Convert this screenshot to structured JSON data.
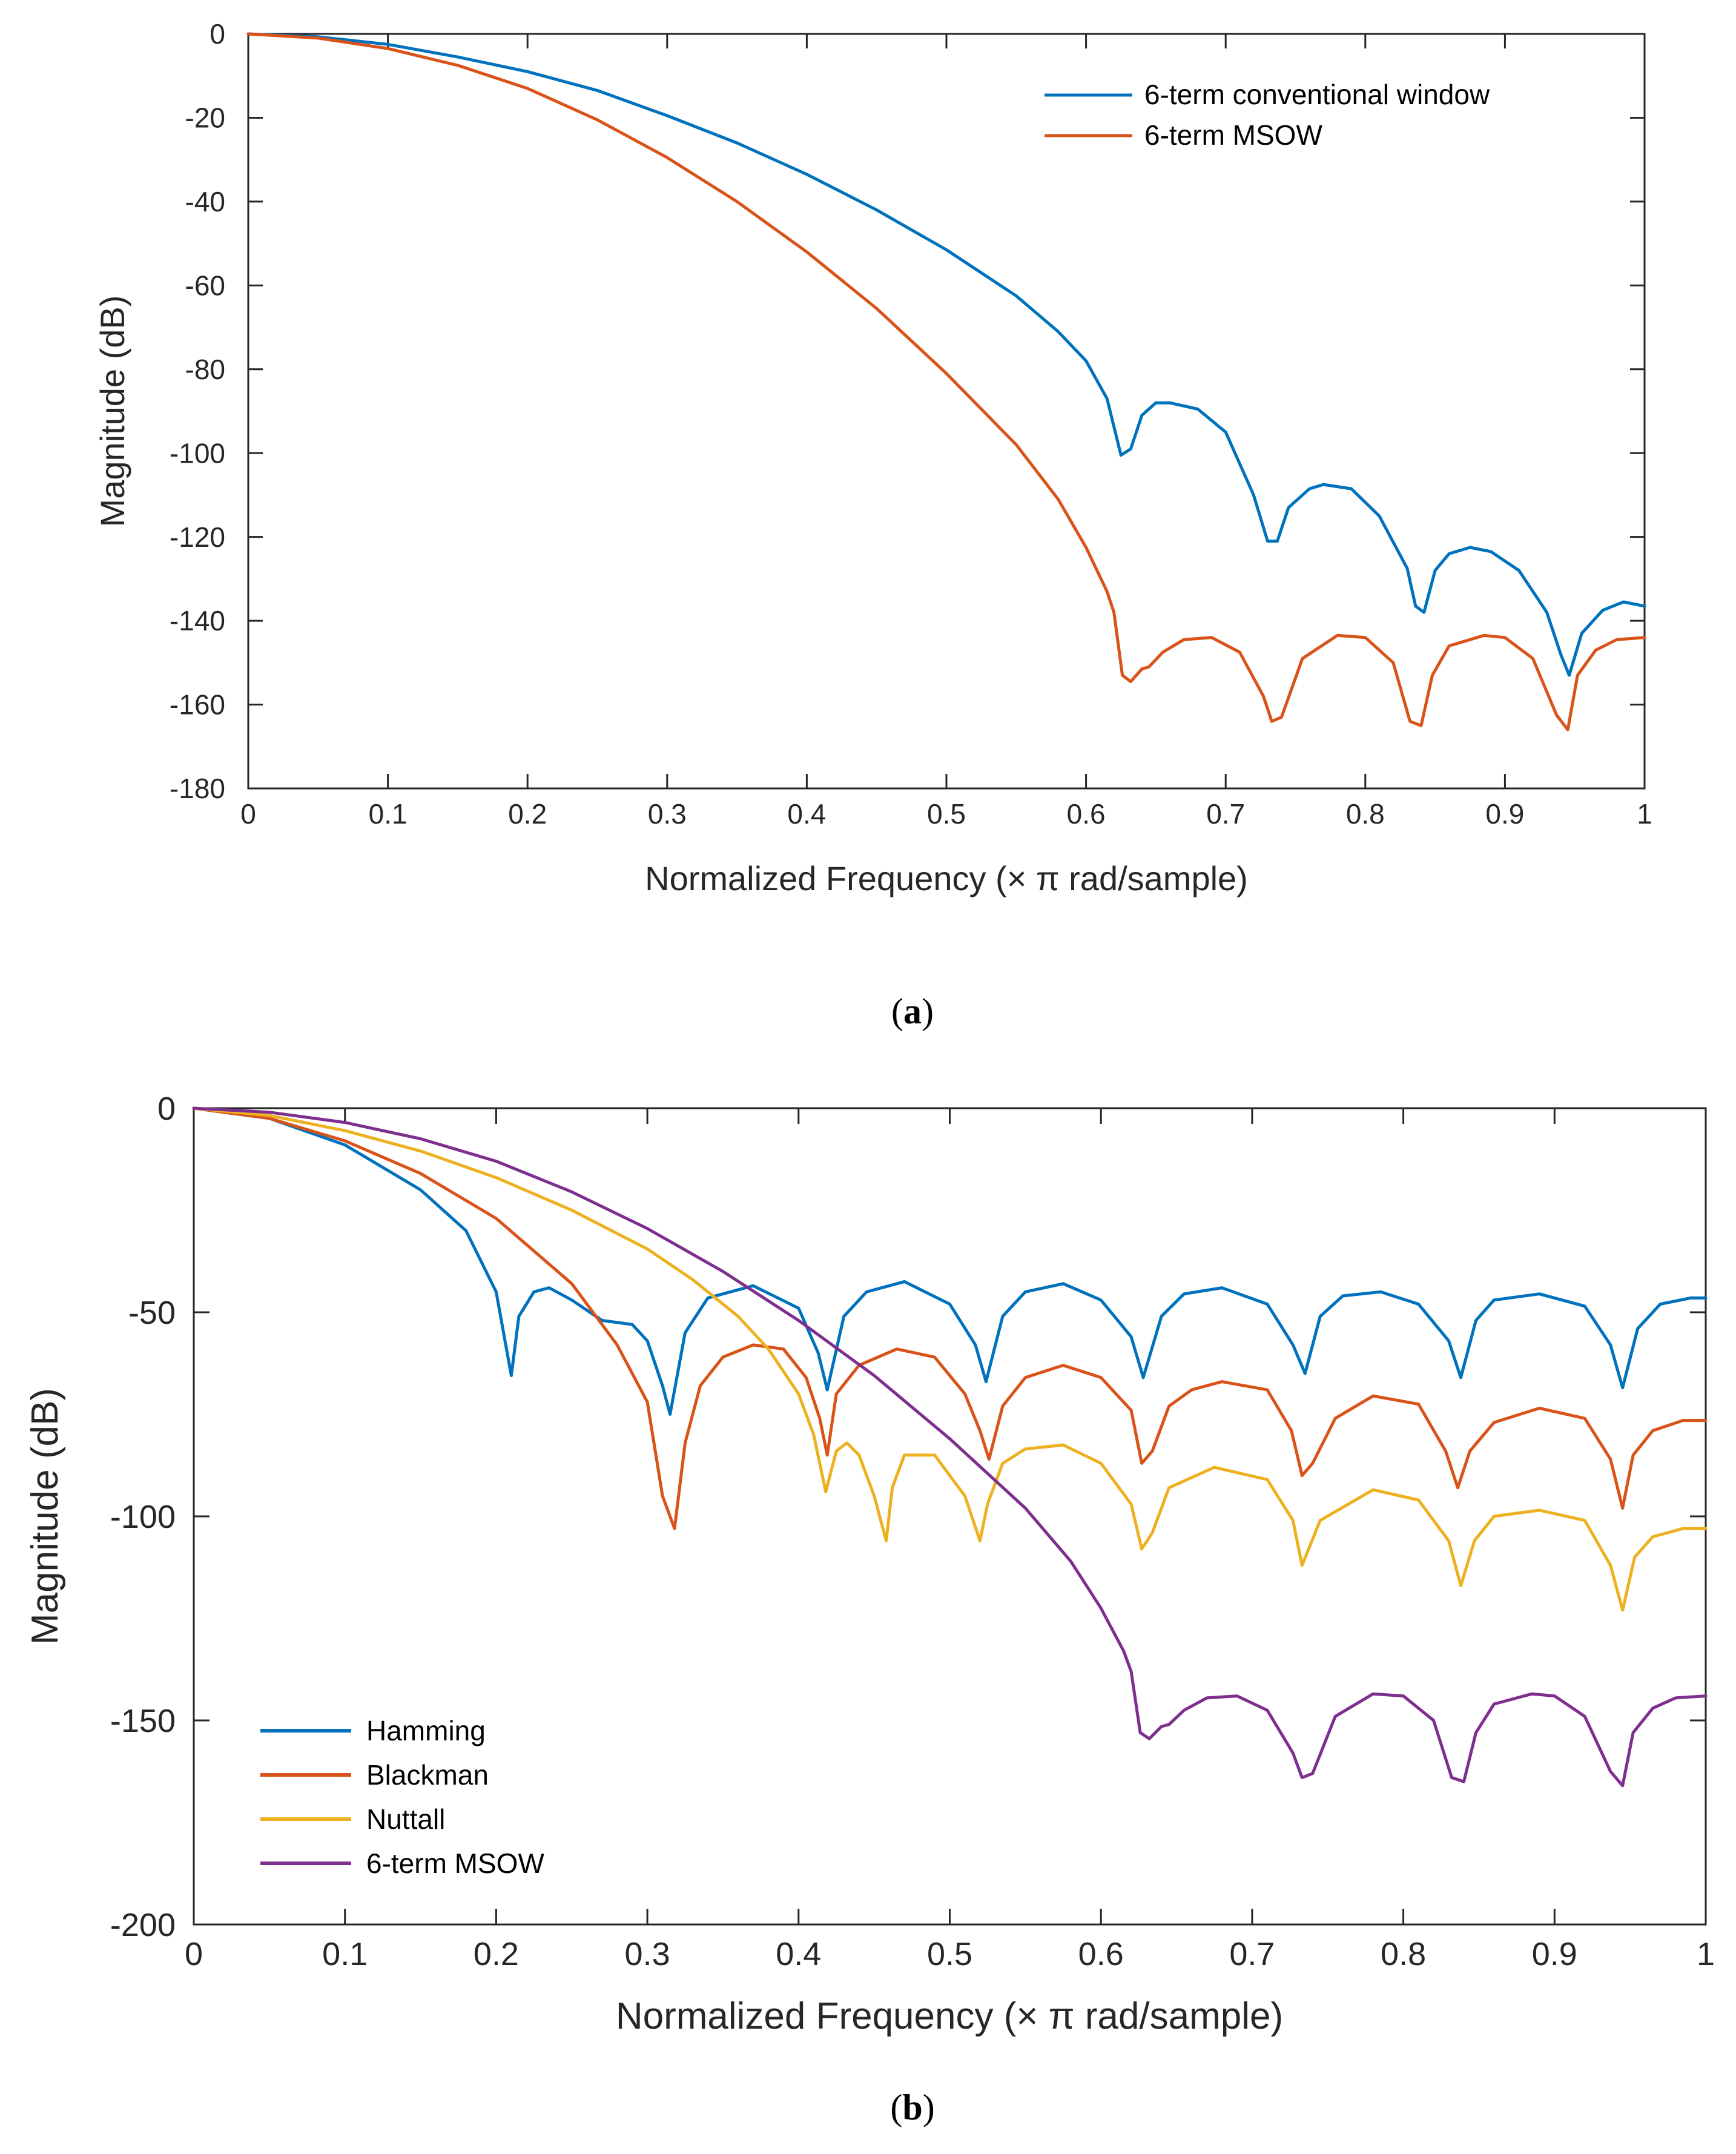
{
  "chart_data": [
    {
      "type": "line",
      "panel": "a",
      "caption_letter": "a",
      "xlabel": "Normalized Frequency (× π rad/sample)",
      "ylabel": "Magnitude (dB)",
      "xlim": [
        0,
        1
      ],
      "ylim": [
        -180,
        0
      ],
      "xticks": [
        0,
        0.1,
        0.2,
        0.3,
        0.4,
        0.5,
        0.6,
        0.7,
        0.8,
        0.9,
        1
      ],
      "xtick_labels": [
        "0",
        "0.1",
        "0.2",
        "0.3",
        "0.4",
        "0.5",
        "0.6",
        "0.7",
        "0.8",
        "0.9",
        "1"
      ],
      "yticks": [
        0,
        -20,
        -40,
        -60,
        -80,
        -100,
        -120,
        -140,
        -160,
        -180
      ],
      "ytick_labels": [
        "0",
        "-20",
        "-40",
        "-60",
        "-80",
        "-100",
        "-120",
        "-140",
        "-160",
        "-180"
      ],
      "grid": false,
      "legend_position": "top-right",
      "series": [
        {
          "name": "6-term conventional window",
          "color": "#0072BD",
          "x": [
            0,
            0.05,
            0.1,
            0.15,
            0.2,
            0.25,
            0.3,
            0.35,
            0.4,
            0.45,
            0.5,
            0.55,
            0.58,
            0.6,
            0.615,
            0.625,
            0.632,
            0.64,
            0.65,
            0.66,
            0.68,
            0.7,
            0.72,
            0.73,
            0.737,
            0.745,
            0.76,
            0.77,
            0.79,
            0.81,
            0.83,
            0.836,
            0.842,
            0.85,
            0.86,
            0.875,
            0.89,
            0.91,
            0.93,
            0.94,
            0.946,
            0.955,
            0.97,
            0.985,
            1
          ],
          "y": [
            0,
            -0.7,
            -2.5,
            -5.5,
            -9,
            -13.5,
            -19.5,
            -26,
            -33.5,
            -42,
            -51.5,
            -62.5,
            -71,
            -78,
            -87,
            -100.5,
            -99,
            -91,
            -88,
            -88,
            -89.5,
            -95,
            -110,
            -121,
            -121,
            -113,
            -108.5,
            -107.5,
            -108.5,
            -115,
            -127.5,
            -136.5,
            -138,
            -128,
            -124,
            -122.5,
            -123.5,
            -128,
            -138,
            -148,
            -153,
            -143,
            -137.5,
            -135.5,
            -136.5
          ]
        },
        {
          "name": "6-term MSOW",
          "color": "#D95319",
          "x": [
            0,
            0.05,
            0.1,
            0.15,
            0.2,
            0.25,
            0.3,
            0.35,
            0.4,
            0.45,
            0.5,
            0.55,
            0.58,
            0.6,
            0.615,
            0.62,
            0.626,
            0.632,
            0.64,
            0.645,
            0.655,
            0.67,
            0.69,
            0.71,
            0.727,
            0.733,
            0.74,
            0.755,
            0.78,
            0.8,
            0.82,
            0.832,
            0.84,
            0.848,
            0.86,
            0.885,
            0.9,
            0.92,
            0.937,
            0.945,
            0.952,
            0.965,
            0.98,
            1
          ],
          "y": [
            0,
            -1,
            -3.5,
            -7.5,
            -13,
            -20.5,
            -29.5,
            -40,
            -52,
            -65.5,
            -81,
            -98,
            -111,
            -122.5,
            -133,
            -138,
            -153,
            -154.5,
            -151.5,
            -151,
            -147.5,
            -144.5,
            -144,
            -147.5,
            -158,
            -164,
            -163,
            -149,
            -143.5,
            -144,
            -150,
            -164,
            -165,
            -153,
            -146,
            -143.5,
            -144,
            -149,
            -162.5,
            -166,
            -153,
            -147,
            -144.5,
            -144
          ]
        }
      ]
    },
    {
      "type": "line",
      "panel": "b",
      "caption_letter": "b",
      "xlabel": "Normalized Frequency (× π rad/sample)",
      "ylabel": "Magnitude (dB)",
      "xlim": [
        0,
        1
      ],
      "ylim": [
        -200,
        0
      ],
      "xticks": [
        0,
        0.1,
        0.2,
        0.3,
        0.4,
        0.5,
        0.6,
        0.7,
        0.8,
        0.9,
        1
      ],
      "xtick_labels": [
        "0",
        "0.1",
        "0.2",
        "0.3",
        "0.4",
        "0.5",
        "0.6",
        "0.7",
        "0.8",
        "0.9",
        "1"
      ],
      "yticks": [
        0,
        -50,
        -100,
        -150,
        -200
      ],
      "ytick_labels": [
        "0",
        "-50",
        "-100",
        "-150",
        "-200"
      ],
      "grid": false,
      "legend_position": "bottom-left",
      "series": [
        {
          "name": "Hamming",
          "color": "#0072BD",
          "x": [
            0,
            0.05,
            0.1,
            0.15,
            0.18,
            0.2,
            0.21,
            0.215,
            0.225,
            0.235,
            0.25,
            0.27,
            0.29,
            0.3,
            0.31,
            0.315,
            0.325,
            0.34,
            0.37,
            0.4,
            0.413,
            0.419,
            0.43,
            0.445,
            0.47,
            0.5,
            0.517,
            0.524,
            0.535,
            0.55,
            0.575,
            0.6,
            0.62,
            0.628,
            0.64,
            0.655,
            0.68,
            0.71,
            0.727,
            0.735,
            0.745,
            0.76,
            0.785,
            0.81,
            0.83,
            0.838,
            0.848,
            0.86,
            0.89,
            0.92,
            0.937,
            0.945,
            0.955,
            0.97,
            0.99,
            1
          ],
          "y": [
            0,
            -2.5,
            -9,
            -20,
            -30,
            -45,
            -65.5,
            -51,
            -45,
            -44,
            -47,
            -52,
            -53,
            -57,
            -68,
            -75,
            -55,
            -46.5,
            -43.5,
            -49,
            -60,
            -69,
            -51,
            -45,
            -42.5,
            -48,
            -58,
            -67,
            -51,
            -45,
            -43,
            -47,
            -56,
            -66,
            -51,
            -45.5,
            -44,
            -48,
            -58,
            -65,
            -51,
            -46,
            -45,
            -48,
            -57,
            -66,
            -52,
            -47,
            -45.5,
            -48.5,
            -58,
            -68.5,
            -54,
            -48,
            -46.5,
            -46.5
          ]
        },
        {
          "name": "Blackman",
          "color": "#D95319",
          "x": [
            0,
            0.05,
            0.1,
            0.15,
            0.2,
            0.25,
            0.28,
            0.3,
            0.31,
            0.318,
            0.325,
            0.335,
            0.35,
            0.37,
            0.39,
            0.405,
            0.414,
            0.419,
            0.425,
            0.44,
            0.465,
            0.49,
            0.51,
            0.52,
            0.526,
            0.535,
            0.55,
            0.575,
            0.6,
            0.62,
            0.627,
            0.634,
            0.645,
            0.66,
            0.68,
            0.71,
            0.726,
            0.733,
            0.74,
            0.755,
            0.78,
            0.81,
            0.828,
            0.836,
            0.844,
            0.86,
            0.89,
            0.92,
            0.937,
            0.945,
            0.952,
            0.965,
            0.985,
            1
          ],
          "y": [
            0,
            -2.5,
            -8,
            -16,
            -27,
            -43,
            -58,
            -72,
            -95,
            -103,
            -82,
            -68,
            -61,
            -58,
            -59,
            -66,
            -76,
            -85,
            -70,
            -63,
            -59,
            -61,
            -70,
            -79,
            -86,
            -73,
            -66,
            -63,
            -66,
            -74,
            -87,
            -84,
            -73,
            -69,
            -67,
            -69,
            -79,
            -90,
            -87,
            -76,
            -70.5,
            -72.5,
            -84,
            -93,
            -84,
            -77,
            -73.5,
            -76,
            -86,
            -98,
            -85,
            -79,
            -76.5,
            -76.5
          ]
        },
        {
          "name": "Nuttall",
          "color": "#EDB120",
          "x": [
            0,
            0.05,
            0.1,
            0.15,
            0.2,
            0.25,
            0.3,
            0.33,
            0.36,
            0.38,
            0.4,
            0.41,
            0.418,
            0.425,
            0.432,
            0.44,
            0.45,
            0.458,
            0.462,
            0.47,
            0.49,
            0.51,
            0.52,
            0.525,
            0.535,
            0.55,
            0.575,
            0.6,
            0.62,
            0.627,
            0.634,
            0.645,
            0.675,
            0.71,
            0.727,
            0.733,
            0.745,
            0.78,
            0.81,
            0.83,
            0.838,
            0.847,
            0.86,
            0.89,
            0.92,
            0.937,
            0.945,
            0.953,
            0.965,
            0.985,
            1
          ],
          "y": [
            0,
            -1.8,
            -5.5,
            -10.5,
            -17,
            -25,
            -34.5,
            -42,
            -51,
            -59,
            -70,
            -80,
            -94,
            -84,
            -82,
            -85,
            -95,
            -106,
            -93,
            -85,
            -85,
            -95,
            -106,
            -97,
            -87,
            -83.5,
            -82.5,
            -87,
            -97,
            -108,
            -104,
            -93,
            -88,
            -91,
            -101,
            -112,
            -101,
            -93.5,
            -96,
            -106,
            -117,
            -106,
            -100,
            -98.5,
            -101,
            -112,
            -123,
            -110,
            -105,
            -103,
            -103
          ]
        },
        {
          "name": "6-term MSOW",
          "color": "#7E2F8E",
          "x": [
            0,
            0.05,
            0.1,
            0.15,
            0.2,
            0.25,
            0.3,
            0.35,
            0.4,
            0.45,
            0.5,
            0.55,
            0.58,
            0.6,
            0.615,
            0.62,
            0.626,
            0.632,
            0.64,
            0.645,
            0.655,
            0.67,
            0.69,
            0.71,
            0.727,
            0.733,
            0.74,
            0.755,
            0.78,
            0.8,
            0.82,
            0.832,
            0.84,
            0.848,
            0.86,
            0.885,
            0.9,
            0.92,
            0.937,
            0.945,
            0.952,
            0.965,
            0.98,
            1
          ],
          "y": [
            0,
            -1,
            -3.5,
            -7.5,
            -13,
            -20.5,
            -29.5,
            -40,
            -52,
            -65.5,
            -81,
            -98,
            -111,
            -122.5,
            -133,
            -138,
            -153,
            -154.5,
            -151.5,
            -151,
            -147.5,
            -144.5,
            -144,
            -147.5,
            -158,
            -164,
            -163,
            -149,
            -143.5,
            -144,
            -150,
            -164,
            -165,
            -153,
            -146,
            -143.5,
            -144,
            -149,
            -162.5,
            -166,
            -153,
            -147,
            -144.5,
            -144
          ]
        }
      ]
    }
  ]
}
